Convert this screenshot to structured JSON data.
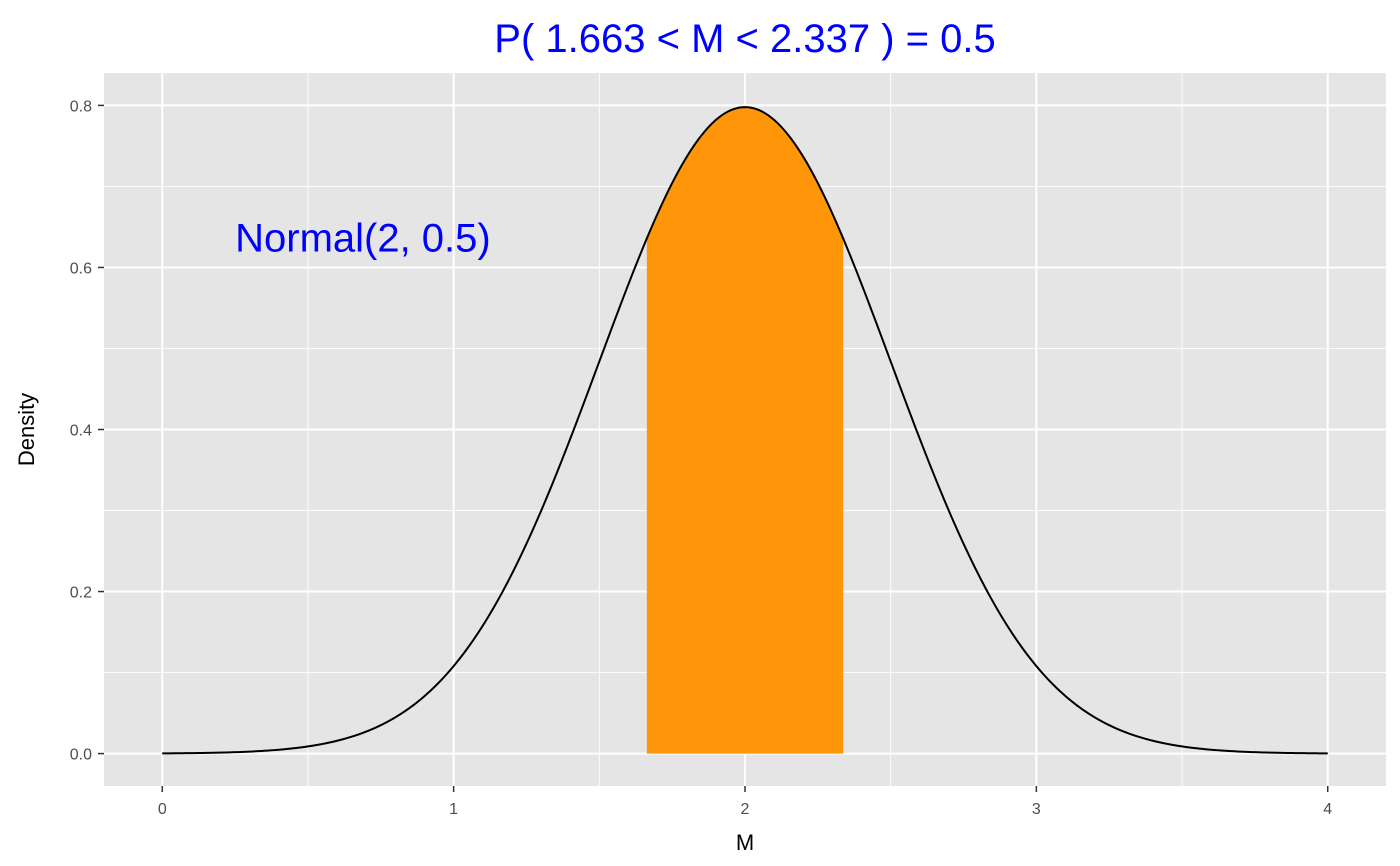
{
  "chart_data": {
    "type": "area",
    "title": "P( 1.663 < M <  2.337 ) = 0.5",
    "xlabel": "M",
    "ylabel": "Density",
    "xlim": [
      -0.2,
      4.2
    ],
    "ylim": [
      -0.04,
      0.84
    ],
    "x_ticks": [
      0,
      1,
      2,
      3,
      4
    ],
    "x_tick_labels": [
      "0",
      "1",
      "2",
      "3",
      "4"
    ],
    "y_ticks": [
      0.0,
      0.2,
      0.4,
      0.6,
      0.8
    ],
    "y_tick_labels": [
      "0.0",
      "0.2",
      "0.4",
      "0.6",
      "0.8"
    ],
    "x_minor": [
      0.5,
      1.5,
      2.5,
      3.5
    ],
    "y_minor": [
      0.1,
      0.3,
      0.5,
      0.7
    ],
    "grid": true,
    "distribution": {
      "family": "normal",
      "mean": 2,
      "sd": 0.5,
      "x_range": [
        0,
        4
      ]
    },
    "shaded_interval": {
      "lower": 1.663,
      "upper": 2.337,
      "probability": 0.5
    },
    "annotation": {
      "text": "Normal(2, 0.5)",
      "x": 0.25,
      "y": 0.62
    },
    "colors": {
      "panel_background": "#e5e5e5",
      "grid": "#ffffff",
      "curve": "#000000",
      "fill": "#ff960a",
      "title": "#0000ff",
      "annotation": "#0000ff",
      "tick_label": "#4d4d4d"
    }
  }
}
